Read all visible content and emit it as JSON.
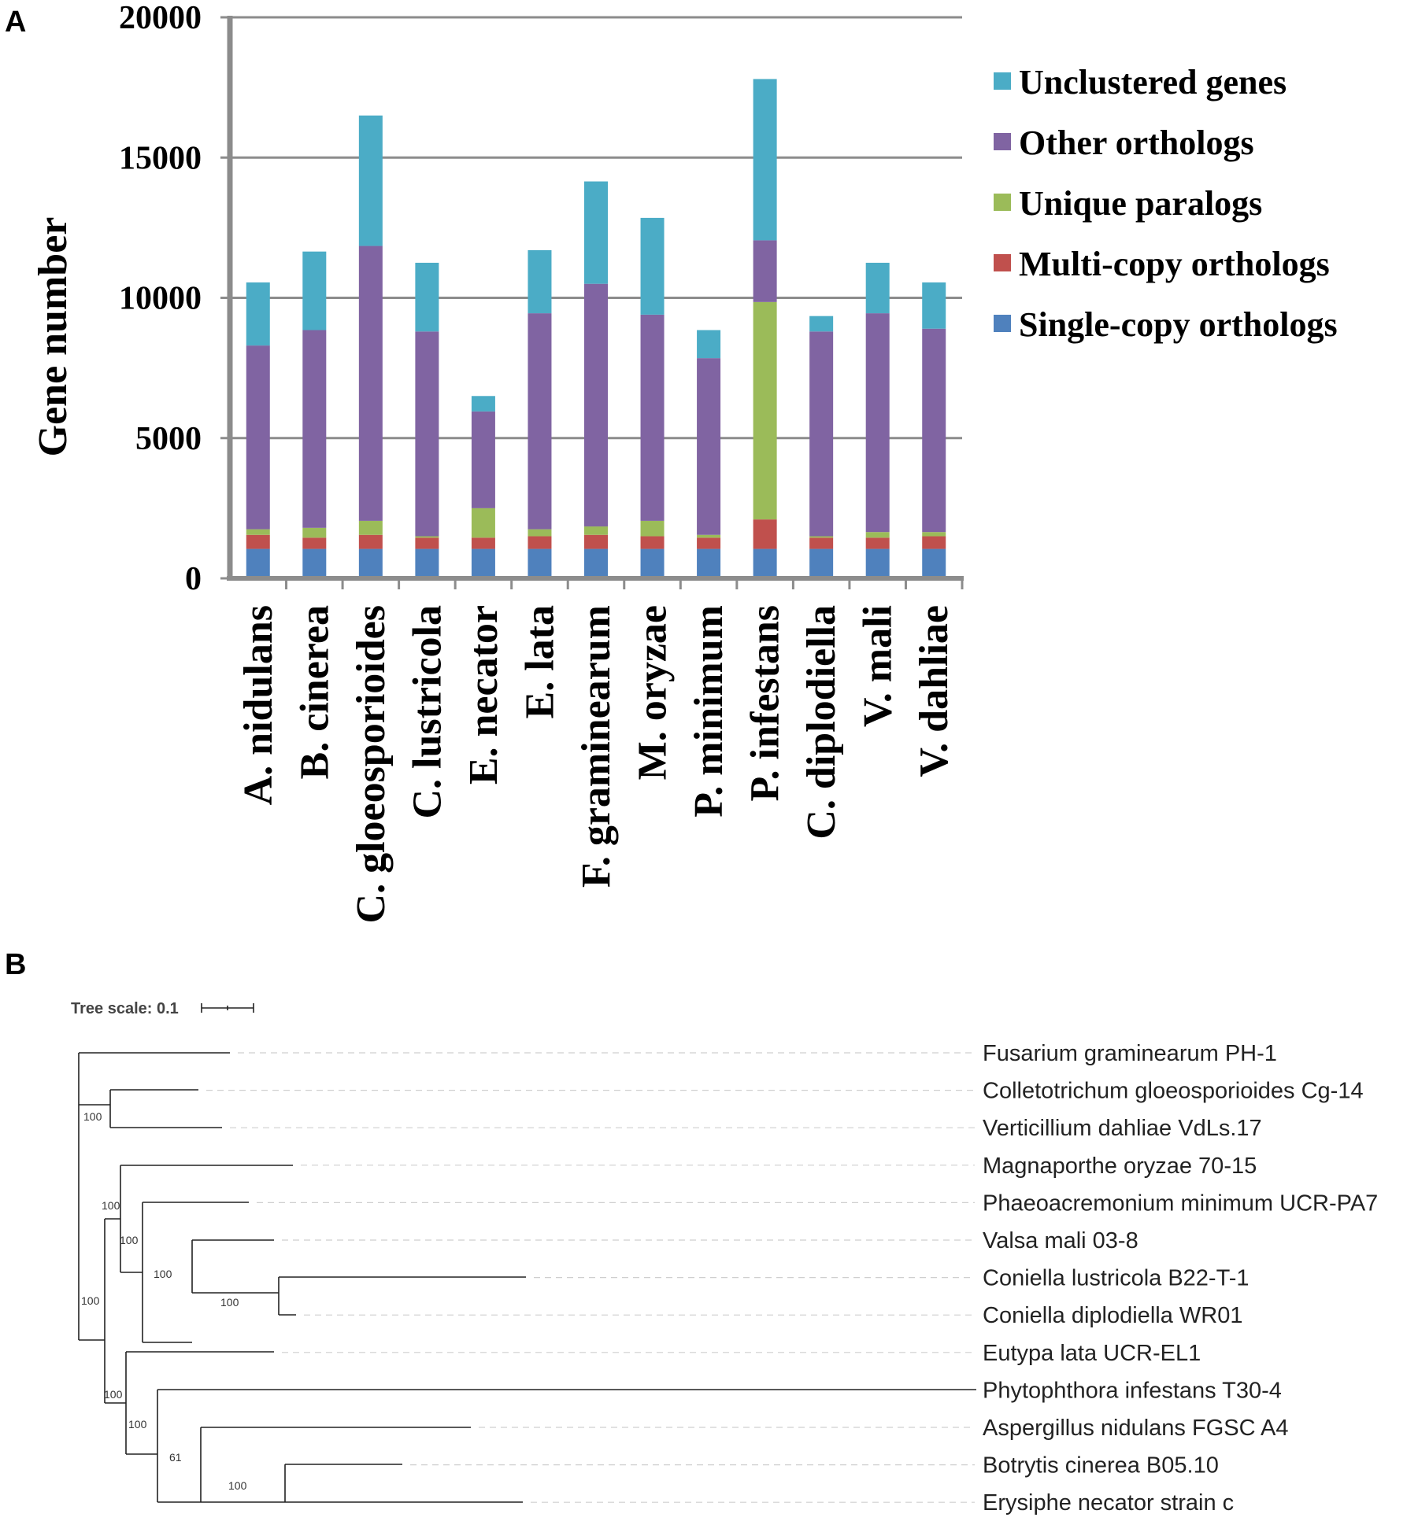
{
  "panels": {
    "a": "A",
    "b": "B"
  },
  "chart_data": {
    "type": "bar",
    "stacked": true,
    "title": "",
    "xlabel": "",
    "ylabel": "Gene number",
    "ylim": [
      0,
      20000
    ],
    "yticks": [
      0,
      5000,
      10000,
      15000,
      20000
    ],
    "grid": true,
    "legend_position": "right",
    "categories": [
      "A. nidulans",
      "B. cinerea",
      "C. gloeosporioides",
      "C. lustricola",
      "E. necator",
      "E. lata",
      "F. graminearum",
      "M. oryzae",
      "P. minimum",
      "P. infestans",
      "C. diplodiella",
      "V. mali",
      "V. dahliae"
    ],
    "series": [
      {
        "name": "Single-copy orthologs",
        "color": "#4f81bd",
        "values": [
          1050,
          1050,
          1050,
          1050,
          1050,
          1050,
          1050,
          1050,
          1050,
          1050,
          1050,
          1050,
          1050
        ]
      },
      {
        "name": "Multi-copy orthologs",
        "color": "#c0504d",
        "values": [
          500,
          400,
          500,
          400,
          400,
          450,
          500,
          450,
          400,
          1050,
          400,
          400,
          450
        ]
      },
      {
        "name": "Unique  paralogs",
        "color": "#9bbb59",
        "values": [
          200,
          350,
          500,
          50,
          1050,
          250,
          300,
          550,
          100,
          7750,
          50,
          200,
          150
        ]
      },
      {
        "name": "Other orthologs",
        "color": "#8064a2",
        "values": [
          6550,
          7050,
          9800,
          7300,
          3450,
          7700,
          8650,
          7350,
          6300,
          2200,
          7300,
          7800,
          7250
        ]
      },
      {
        "name": "Unclustered genes",
        "color": "#4bacc6",
        "values": [
          2250,
          2800,
          4650,
          2450,
          550,
          2250,
          3650,
          3450,
          1000,
          5750,
          550,
          1800,
          1650
        ]
      }
    ]
  },
  "tree": {
    "scale_label": "Tree scale: 0.1",
    "taxa": [
      "Fusarium graminearum PH-1",
      "Colletotrichum gloeosporioides Cg-14",
      "Verticillium dahliae VdLs.17",
      "Magnaporthe oryzae 70-15",
      "Phaeoacremonium minimum UCR-PA7",
      "Valsa mali 03-8",
      "Coniella lustricola B22-T-1",
      "Coniella diplodiella WR01",
      "Eutypa lata UCR-EL1",
      "Phytophthora infestans T30-4",
      "Aspergillus nidulans FGSC A4",
      "Botrytis cinerea B05.10",
      "Erysiphe necator strain c"
    ],
    "bootstrap": [
      "100",
      "100",
      "100",
      "100",
      "100",
      "100",
      "100",
      "100",
      "61",
      "100"
    ]
  }
}
